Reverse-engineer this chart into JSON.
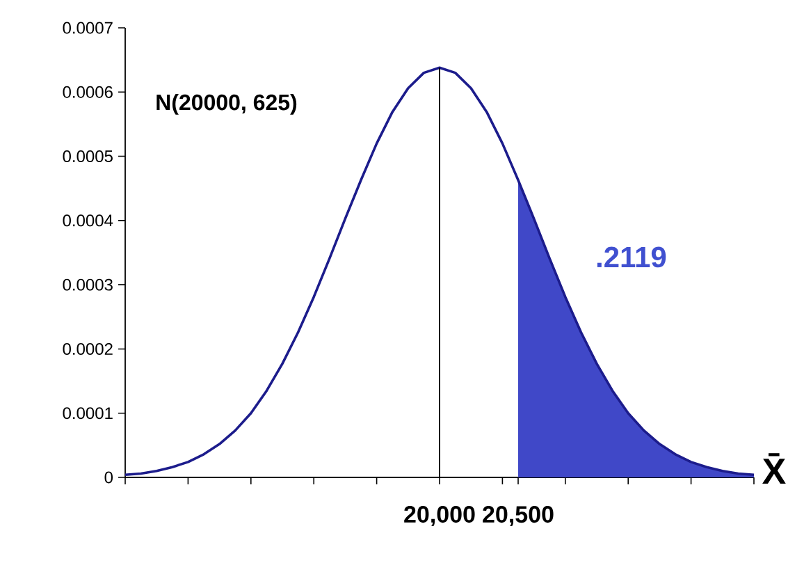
{
  "chart_data": {
    "type": "line",
    "series": [
      {
        "type": "area",
        "color": "#4048c8",
        "x": [
          20500,
          20600,
          20700,
          20800,
          20900,
          21000,
          21100,
          21200,
          21300,
          21400,
          21500,
          21600,
          21700,
          21800,
          21900,
          22000
        ],
        "values": [
          0.000463,
          0.000403,
          0.000341,
          0.000281,
          0.000226,
          0.000177,
          0.000135,
          0.0001,
          7.3e-05,
          5.2e-05,
          3.6e-05,
          2.4e-05,
          1.6e-05,
          1e-05,
          6e-06,
          4e-06
        ]
      },
      {
        "type": "line",
        "color": "#1c1c8c",
        "x": [
          18000,
          18100,
          18200,
          18300,
          18400,
          18500,
          18600,
          18700,
          18800,
          18900,
          19000,
          19100,
          19200,
          19300,
          19400,
          19500,
          19600,
          19700,
          19800,
          19900,
          20000,
          20100,
          20200,
          20300,
          20400,
          20500,
          20600,
          20700,
          20800,
          20900,
          21000,
          21100,
          21200,
          21300,
          21400,
          21500,
          21600,
          21700,
          21800,
          21900,
          22000
        ],
        "values": [
          4e-06,
          6e-06,
          1e-05,
          1.6e-05,
          2.4e-05,
          3.6e-05,
          5.2e-05,
          7.3e-05,
          0.0001,
          0.000135,
          0.000177,
          0.000226,
          0.000281,
          0.000341,
          0.000403,
          0.000463,
          0.00052,
          0.000569,
          0.000606,
          0.00063,
          0.000638,
          0.00063,
          0.000606,
          0.000569,
          0.00052,
          0.000463,
          0.000403,
          0.000341,
          0.000281,
          0.000226,
          0.000177,
          0.000135,
          0.0001,
          7.3e-05,
          5.2e-05,
          3.6e-05,
          2.4e-05,
          1.6e-05,
          1e-05,
          6e-06,
          4e-06
        ]
      }
    ],
    "ref_lines": [
      {
        "axis": "x",
        "value": 20000,
        "color": "#000000"
      }
    ],
    "xlabel": "X̄",
    "annotations": [
      "N(20000, 625)",
      ".2119"
    ],
    "xlim": [
      18000,
      22000
    ],
    "ylim": [
      0,
      0.0007
    ],
    "xticks": [
      {
        "value": 18000,
        "label": null
      },
      {
        "value": 18400,
        "label": null
      },
      {
        "value": 18800,
        "label": null
      },
      {
        "value": 19200,
        "label": null
      },
      {
        "value": 19600,
        "label": null
      },
      {
        "value": 20000,
        "label": "20,000"
      },
      {
        "value": 20400,
        "label": null
      },
      {
        "value": 20500,
        "label": "20,500"
      },
      {
        "value": 20800,
        "label": null
      },
      {
        "value": 21200,
        "label": null
      },
      {
        "value": 21600,
        "label": null
      },
      {
        "value": 22000,
        "label": null
      }
    ],
    "yticks": [
      0,
      0.0001,
      0.0002,
      0.0003,
      0.0004,
      0.0005,
      0.0006,
      0.0007
    ],
    "grid": false,
    "marker": "none",
    "line_style": "solid"
  }
}
